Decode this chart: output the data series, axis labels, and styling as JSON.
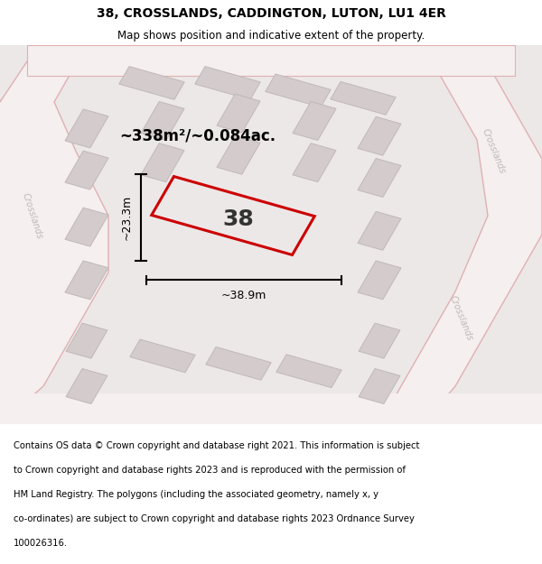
{
  "title": "38, CROSSLANDS, CADDINGTON, LUTON, LU1 4ER",
  "subtitle": "Map shows position and indicative extent of the property.",
  "footer": "Contains OS data © Crown copyright and database right 2021. This information is subject to Crown copyright and database rights 2023 and is reproduced with the permission of HM Land Registry. The polygons (including the associated geometry, namely x, y co-ordinates) are subject to Crown copyright and database rights 2023 Ordnance Survey 100026316.",
  "area_label": "~338m²/~0.084ac.",
  "width_label": "~38.9m",
  "height_label": "~23.3m",
  "property_number": "38",
  "map_bg": "#ede8e8",
  "road_fill": "#f5efef",
  "road_edge": "#e0b0b0",
  "building_fill": "#d4cccc",
  "building_edge": "#c0b8b8",
  "highlight_color": "#cc0000",
  "street_label_color": "#c0b8b8",
  "title_fontsize": 10,
  "subtitle_fontsize": 8.5,
  "footer_fontsize": 7.2,
  "area_fontsize": 12,
  "dim_fontsize": 9,
  "prop_label_fontsize": 18
}
